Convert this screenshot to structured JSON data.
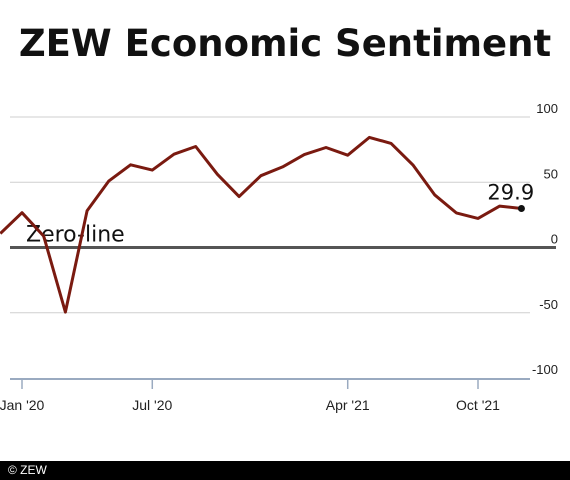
{
  "chart_data": {
    "type": "line",
    "title": "ZEW Economic Sentiment",
    "y_ticks": [
      100,
      50,
      0,
      -50,
      -100
    ],
    "ylim": [
      -100,
      100
    ],
    "x_tick_labels": [
      "Jan '20",
      "Jul '20",
      "Apr '21",
      "Oct '21"
    ],
    "x_tick_dates": [
      "2020-01",
      "2020-07",
      "2021-04",
      "2021-10"
    ],
    "zero_line_label": "Zero-line",
    "last_value_label": "29.9",
    "series": [
      {
        "color": "#7a1a10",
        "points": [
          {
            "x": "2019-12",
            "y": 10.7
          },
          {
            "x": "2020-01",
            "y": 26.7
          },
          {
            "x": "2020-02",
            "y": 8.7
          },
          {
            "x": "2020-03",
            "y": -49.5
          },
          {
            "x": "2020-04",
            "y": 28.2
          },
          {
            "x": "2020-05",
            "y": 51.0
          },
          {
            "x": "2020-06",
            "y": 63.4
          },
          {
            "x": "2020-07",
            "y": 59.3
          },
          {
            "x": "2020-08",
            "y": 71.5
          },
          {
            "x": "2020-09",
            "y": 77.4
          },
          {
            "x": "2020-10",
            "y": 56.1
          },
          {
            "x": "2020-11",
            "y": 39.0
          },
          {
            "x": "2020-12",
            "y": 55.0
          },
          {
            "x": "2021-01",
            "y": 61.8
          },
          {
            "x": "2021-02",
            "y": 71.2
          },
          {
            "x": "2021-03",
            "y": 76.6
          },
          {
            "x": "2021-04",
            "y": 70.7
          },
          {
            "x": "2021-05",
            "y": 84.4
          },
          {
            "x": "2021-06",
            "y": 79.8
          },
          {
            "x": "2021-07",
            "y": 63.3
          },
          {
            "x": "2021-08",
            "y": 40.4
          },
          {
            "x": "2021-09",
            "y": 26.5
          },
          {
            "x": "2021-10",
            "y": 22.3
          },
          {
            "x": "2021-11",
            "y": 31.7
          },
          {
            "x": "2021-12",
            "y": 29.9
          }
        ]
      }
    ],
    "colors": {
      "line": "#7a1a10",
      "zero_line": "#555555",
      "grid": "#cfcfcf",
      "axis": "#9aaac0",
      "text": "#111111"
    }
  },
  "footer": {
    "credit": "© ZEW"
  }
}
